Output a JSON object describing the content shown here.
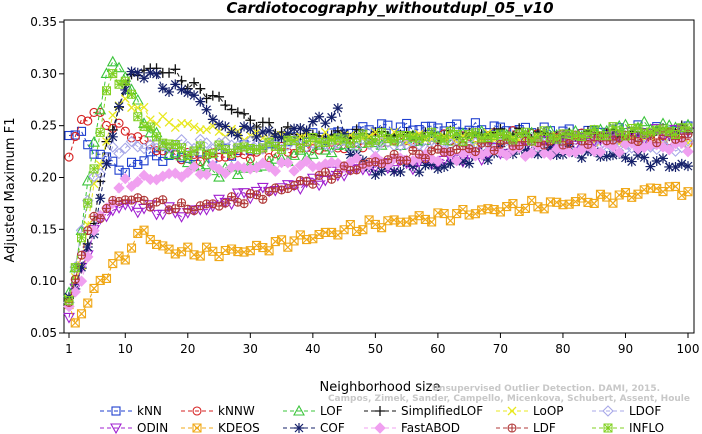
{
  "chart_data": {
    "type": "line",
    "title": "Cardiotocography_withoutdupl_05_v10",
    "xlabel": "Neighborhood size",
    "ylabel": "Adjusted Maximum F1",
    "xlim": [
      1,
      100
    ],
    "ylim": [
      0.05,
      0.35
    ],
    "xticks": [
      1,
      10,
      20,
      30,
      40,
      50,
      60,
      70,
      80,
      90,
      100
    ],
    "yticks": [
      0.05,
      0.1,
      0.15,
      0.2,
      0.25,
      0.3,
      0.35
    ],
    "grid": false,
    "legend_position": "bottom",
    "watermark": [
      "Unsupervised Outlier Detection. DAMI, 2015.",
      "Campos, Zimek, Sander, Campello, Micenkova, Schubert, Assent, Houle"
    ],
    "series": [
      {
        "name": "kNN",
        "color": "#1f3fcf",
        "marker": "square",
        "keypoints": [
          [
            1,
            0.245
          ],
          [
            3,
            0.24
          ],
          [
            5,
            0.225
          ],
          [
            8,
            0.215
          ],
          [
            10,
            0.205
          ],
          [
            13,
            0.22
          ],
          [
            20,
            0.22
          ],
          [
            30,
            0.228
          ],
          [
            40,
            0.238
          ],
          [
            50,
            0.248
          ],
          [
            60,
            0.248
          ],
          [
            70,
            0.247
          ],
          [
            80,
            0.243
          ],
          [
            90,
            0.245
          ],
          [
            100,
            0.247
          ]
        ]
      },
      {
        "name": "kNNW",
        "color": "#d62222",
        "marker": "circle",
        "keypoints": [
          [
            1,
            0.22
          ],
          [
            3,
            0.255
          ],
          [
            5,
            0.262
          ],
          [
            8,
            0.25
          ],
          [
            10,
            0.245
          ],
          [
            15,
            0.228
          ],
          [
            20,
            0.22
          ],
          [
            30,
            0.222
          ],
          [
            40,
            0.228
          ],
          [
            50,
            0.235
          ],
          [
            60,
            0.237
          ],
          [
            70,
            0.24
          ],
          [
            80,
            0.24
          ],
          [
            90,
            0.238
          ],
          [
            100,
            0.237
          ]
        ]
      },
      {
        "name": "LOF",
        "color": "#3bc43b",
        "marker": "triangle-up",
        "keypoints": [
          [
            1,
            0.085
          ],
          [
            3,
            0.15
          ],
          [
            5,
            0.235
          ],
          [
            7,
            0.3
          ],
          [
            8,
            0.31
          ],
          [
            10,
            0.3
          ],
          [
            13,
            0.255
          ],
          [
            16,
            0.23
          ],
          [
            20,
            0.215
          ],
          [
            25,
            0.205
          ],
          [
            30,
            0.21
          ],
          [
            40,
            0.225
          ],
          [
            50,
            0.235
          ],
          [
            60,
            0.238
          ],
          [
            70,
            0.24
          ],
          [
            80,
            0.24
          ],
          [
            90,
            0.248
          ],
          [
            100,
            0.25
          ]
        ]
      },
      {
        "name": "SimplifiedLOF",
        "color": "#111111",
        "marker": "plus",
        "keypoints": [
          [
            1,
            0.085
          ],
          [
            3,
            0.11
          ],
          [
            5,
            0.16
          ],
          [
            7,
            0.23
          ],
          [
            9,
            0.27
          ],
          [
            11,
            0.3
          ],
          [
            15,
            0.305
          ],
          [
            18,
            0.3
          ],
          [
            20,
            0.29
          ],
          [
            25,
            0.275
          ],
          [
            30,
            0.255
          ],
          [
            35,
            0.245
          ],
          [
            40,
            0.24
          ],
          [
            50,
            0.242
          ],
          [
            60,
            0.24
          ],
          [
            70,
            0.243
          ],
          [
            80,
            0.24
          ],
          [
            90,
            0.242
          ],
          [
            100,
            0.245
          ]
        ]
      },
      {
        "name": "LoOP",
        "color": "#e8e820",
        "marker": "x",
        "keypoints": [
          [
            1,
            0.08
          ],
          [
            3,
            0.12
          ],
          [
            5,
            0.19
          ],
          [
            8,
            0.26
          ],
          [
            10,
            0.275
          ],
          [
            15,
            0.255
          ],
          [
            20,
            0.25
          ],
          [
            30,
            0.24
          ],
          [
            40,
            0.238
          ],
          [
            50,
            0.24
          ],
          [
            60,
            0.238
          ],
          [
            70,
            0.238
          ],
          [
            80,
            0.235
          ],
          [
            90,
            0.236
          ],
          [
            100,
            0.235
          ]
        ]
      },
      {
        "name": "LDOF",
        "color": "#a8a8e8",
        "marker": "diamond",
        "keypoints": [
          [
            1,
            0.08
          ],
          [
            3,
            0.15
          ],
          [
            5,
            0.2
          ],
          [
            8,
            0.225
          ],
          [
            10,
            0.23
          ],
          [
            20,
            0.232
          ],
          [
            30,
            0.232
          ],
          [
            40,
            0.232
          ],
          [
            50,
            0.232
          ],
          [
            60,
            0.232
          ],
          [
            70,
            0.232
          ],
          [
            80,
            0.23
          ],
          [
            90,
            0.23
          ],
          [
            100,
            0.23
          ]
        ]
      },
      {
        "name": "ODIN",
        "color": "#a020d0",
        "marker": "triangle-down",
        "keypoints": [
          [
            1,
            0.07
          ],
          [
            3,
            0.11
          ],
          [
            5,
            0.15
          ],
          [
            8,
            0.17
          ],
          [
            10,
            0.172
          ],
          [
            15,
            0.168
          ],
          [
            20,
            0.165
          ],
          [
            25,
            0.175
          ],
          [
            30,
            0.185
          ],
          [
            35,
            0.19
          ],
          [
            40,
            0.195
          ],
          [
            45,
            0.205
          ],
          [
            50,
            0.21
          ],
          [
            60,
            0.215
          ],
          [
            70,
            0.225
          ],
          [
            80,
            0.235
          ],
          [
            90,
            0.24
          ],
          [
            100,
            0.245
          ]
        ]
      },
      {
        "name": "KDEOS",
        "color": "#f0a818",
        "marker": "square-x",
        "keypoints": [
          [
            1,
            0.075
          ],
          [
            2,
            0.06
          ],
          [
            4,
            0.08
          ],
          [
            6,
            0.1
          ],
          [
            8,
            0.115
          ],
          [
            10,
            0.125
          ],
          [
            13,
            0.15
          ],
          [
            15,
            0.135
          ],
          [
            17,
            0.13
          ],
          [
            20,
            0.128
          ],
          [
            25,
            0.128
          ],
          [
            30,
            0.13
          ],
          [
            40,
            0.143
          ],
          [
            50,
            0.155
          ],
          [
            60,
            0.162
          ],
          [
            70,
            0.17
          ],
          [
            80,
            0.175
          ],
          [
            90,
            0.182
          ],
          [
            95,
            0.19
          ],
          [
            100,
            0.187
          ]
        ]
      },
      {
        "name": "COF",
        "color": "#15206a",
        "marker": "asterisk",
        "keypoints": [
          [
            1,
            0.085
          ],
          [
            3,
            0.11
          ],
          [
            5,
            0.15
          ],
          [
            7,
            0.21
          ],
          [
            9,
            0.27
          ],
          [
            11,
            0.3
          ],
          [
            14,
            0.3
          ],
          [
            17,
            0.285
          ],
          [
            20,
            0.285
          ],
          [
            23,
            0.265
          ],
          [
            26,
            0.245
          ],
          [
            30,
            0.245
          ],
          [
            35,
            0.24
          ],
          [
            40,
            0.252
          ],
          [
            44,
            0.262
          ],
          [
            46,
            0.225
          ],
          [
            50,
            0.205
          ],
          [
            55,
            0.21
          ],
          [
            60,
            0.21
          ],
          [
            70,
            0.225
          ],
          [
            80,
            0.225
          ],
          [
            90,
            0.22
          ],
          [
            100,
            0.21
          ]
        ]
      },
      {
        "name": "FastABOD",
        "color": "#f0a0f0",
        "marker": "diamond-filled",
        "keypoints": [
          [
            1,
            0.075
          ],
          [
            3,
            0.1
          ],
          [
            5,
            0.15
          ],
          [
            8,
            0.18
          ],
          [
            10,
            0.195
          ],
          [
            15,
            0.2
          ],
          [
            20,
            0.205
          ],
          [
            30,
            0.21
          ],
          [
            40,
            0.212
          ],
          [
            50,
            0.215
          ],
          [
            60,
            0.22
          ],
          [
            70,
            0.225
          ],
          [
            80,
            0.225
          ],
          [
            90,
            0.23
          ],
          [
            100,
            0.23
          ]
        ]
      },
      {
        "name": "LDF",
        "color": "#b03838",
        "marker": "circle-plus",
        "keypoints": [
          [
            1,
            0.075
          ],
          [
            3,
            0.13
          ],
          [
            5,
            0.16
          ],
          [
            8,
            0.175
          ],
          [
            10,
            0.18
          ],
          [
            15,
            0.175
          ],
          [
            20,
            0.17
          ],
          [
            25,
            0.175
          ],
          [
            30,
            0.18
          ],
          [
            40,
            0.198
          ],
          [
            50,
            0.215
          ],
          [
            60,
            0.225
          ],
          [
            70,
            0.232
          ],
          [
            80,
            0.235
          ],
          [
            90,
            0.238
          ],
          [
            100,
            0.24
          ]
        ]
      },
      {
        "name": "INFLO",
        "color": "#80d020",
        "marker": "square-plus",
        "keypoints": [
          [
            1,
            0.085
          ],
          [
            3,
            0.14
          ],
          [
            5,
            0.21
          ],
          [
            7,
            0.28
          ],
          [
            8,
            0.3
          ],
          [
            10,
            0.29
          ],
          [
            13,
            0.25
          ],
          [
            16,
            0.235
          ],
          [
            20,
            0.225
          ],
          [
            30,
            0.228
          ],
          [
            40,
            0.235
          ],
          [
            50,
            0.238
          ],
          [
            60,
            0.24
          ],
          [
            70,
            0.24
          ],
          [
            80,
            0.24
          ],
          [
            90,
            0.245
          ],
          [
            100,
            0.245
          ]
        ]
      }
    ]
  }
}
